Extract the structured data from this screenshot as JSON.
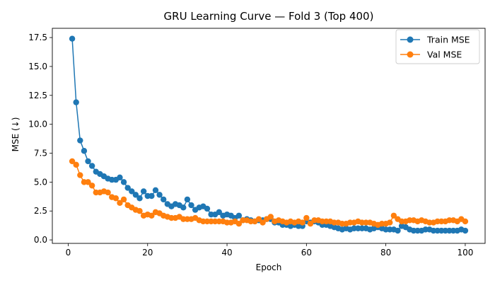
{
  "chart_data": {
    "type": "line",
    "title": "GRU Learning Curve — Fold 3 (Top 400)",
    "xlabel": "Epoch",
    "ylabel": "MSE (↓)",
    "xlim": [
      -4,
      105
    ],
    "ylim": [
      -0.3,
      18.3
    ],
    "xticks": [
      0,
      20,
      40,
      60,
      80,
      100
    ],
    "yticks": [
      0.0,
      2.5,
      5.0,
      7.5,
      10.0,
      12.5,
      15.0,
      17.5
    ],
    "xtick_labels": [
      "0",
      "20",
      "40",
      "60",
      "80",
      "100"
    ],
    "ytick_labels": [
      "0.0",
      "2.5",
      "5.0",
      "7.5",
      "10.0",
      "12.5",
      "15.0",
      "17.5"
    ],
    "grid": false,
    "legend_position": "top-right",
    "series": [
      {
        "name": "Train MSE",
        "color": "#1f77b4",
        "x": [
          1,
          2,
          3,
          4,
          5,
          6,
          7,
          8,
          9,
          10,
          11,
          12,
          13,
          14,
          15,
          16,
          17,
          18,
          19,
          20,
          21,
          22,
          23,
          24,
          25,
          26,
          27,
          28,
          29,
          30,
          31,
          32,
          33,
          34,
          35,
          36,
          37,
          38,
          39,
          40,
          41,
          42,
          43,
          44,
          45,
          46,
          47,
          48,
          49,
          50,
          51,
          52,
          53,
          54,
          55,
          56,
          57,
          58,
          59,
          60,
          61,
          62,
          63,
          64,
          65,
          66,
          67,
          68,
          69,
          70,
          71,
          72,
          73,
          74,
          75,
          76,
          77,
          78,
          79,
          80,
          81,
          82,
          83,
          84,
          85,
          86,
          87,
          88,
          89,
          90,
          91,
          92,
          93,
          94,
          95,
          96,
          97,
          98,
          99,
          100
        ],
        "values": [
          17.4,
          11.9,
          8.6,
          7.7,
          6.8,
          6.4,
          5.9,
          5.7,
          5.5,
          5.3,
          5.2,
          5.2,
          5.4,
          5.0,
          4.5,
          4.2,
          3.9,
          3.6,
          4.2,
          3.8,
          3.8,
          4.3,
          3.9,
          3.5,
          3.1,
          2.9,
          3.1,
          3.0,
          2.8,
          3.5,
          3.0,
          2.6,
          2.8,
          2.9,
          2.7,
          2.2,
          2.2,
          2.4,
          2.1,
          2.2,
          2.1,
          1.9,
          2.1,
          1.7,
          1.8,
          1.7,
          1.6,
          1.7,
          1.7,
          1.8,
          1.8,
          1.5,
          1.5,
          1.3,
          1.3,
          1.2,
          1.3,
          1.2,
          1.2,
          1.6,
          1.5,
          1.6,
          1.5,
          1.3,
          1.3,
          1.2,
          1.1,
          1.0,
          0.9,
          1.0,
          0.9,
          1.0,
          1.0,
          1.0,
          1.0,
          0.9,
          1.0,
          1.1,
          1.0,
          0.9,
          0.9,
          0.9,
          0.8,
          1.2,
          1.1,
          0.9,
          0.8,
          0.8,
          0.8,
          0.9,
          0.9,
          0.8,
          0.8,
          0.8,
          0.8,
          0.8,
          0.8,
          0.8,
          0.9,
          0.8
        ]
      },
      {
        "name": "Val MSE",
        "color": "#ff7f0e",
        "x": [
          1,
          2,
          3,
          4,
          5,
          6,
          7,
          8,
          9,
          10,
          11,
          12,
          13,
          14,
          15,
          16,
          17,
          18,
          19,
          20,
          21,
          22,
          23,
          24,
          25,
          26,
          27,
          28,
          29,
          30,
          31,
          32,
          33,
          34,
          35,
          36,
          37,
          38,
          39,
          40,
          41,
          42,
          43,
          44,
          45,
          46,
          47,
          48,
          49,
          50,
          51,
          52,
          53,
          54,
          55,
          56,
          57,
          58,
          59,
          60,
          61,
          62,
          63,
          64,
          65,
          66,
          67,
          68,
          69,
          70,
          71,
          72,
          73,
          74,
          75,
          76,
          77,
          78,
          79,
          80,
          81,
          82,
          83,
          84,
          85,
          86,
          87,
          88,
          89,
          90,
          91,
          92,
          93,
          94,
          95,
          96,
          97,
          98,
          99,
          100
        ],
        "values": [
          6.8,
          6.5,
          5.6,
          5.0,
          5.0,
          4.7,
          4.1,
          4.1,
          4.2,
          4.1,
          3.7,
          3.6,
          3.2,
          3.5,
          3.0,
          2.8,
          2.6,
          2.5,
          2.1,
          2.2,
          2.1,
          2.4,
          2.3,
          2.1,
          2.0,
          1.9,
          1.9,
          2.0,
          1.8,
          1.8,
          1.8,
          1.9,
          1.7,
          1.6,
          1.6,
          1.6,
          1.6,
          1.6,
          1.6,
          1.5,
          1.5,
          1.6,
          1.4,
          1.7,
          1.7,
          1.6,
          1.6,
          1.8,
          1.5,
          1.8,
          2.0,
          1.6,
          1.7,
          1.6,
          1.5,
          1.6,
          1.5,
          1.6,
          1.5,
          1.9,
          1.4,
          1.7,
          1.7,
          1.6,
          1.6,
          1.6,
          1.5,
          1.5,
          1.4,
          1.4,
          1.5,
          1.5,
          1.6,
          1.5,
          1.5,
          1.5,
          1.4,
          1.3,
          1.4,
          1.4,
          1.5,
          2.1,
          1.8,
          1.6,
          1.6,
          1.7,
          1.7,
          1.6,
          1.7,
          1.6,
          1.5,
          1.5,
          1.6,
          1.6,
          1.6,
          1.7,
          1.7,
          1.6,
          1.8,
          1.6
        ]
      }
    ]
  }
}
